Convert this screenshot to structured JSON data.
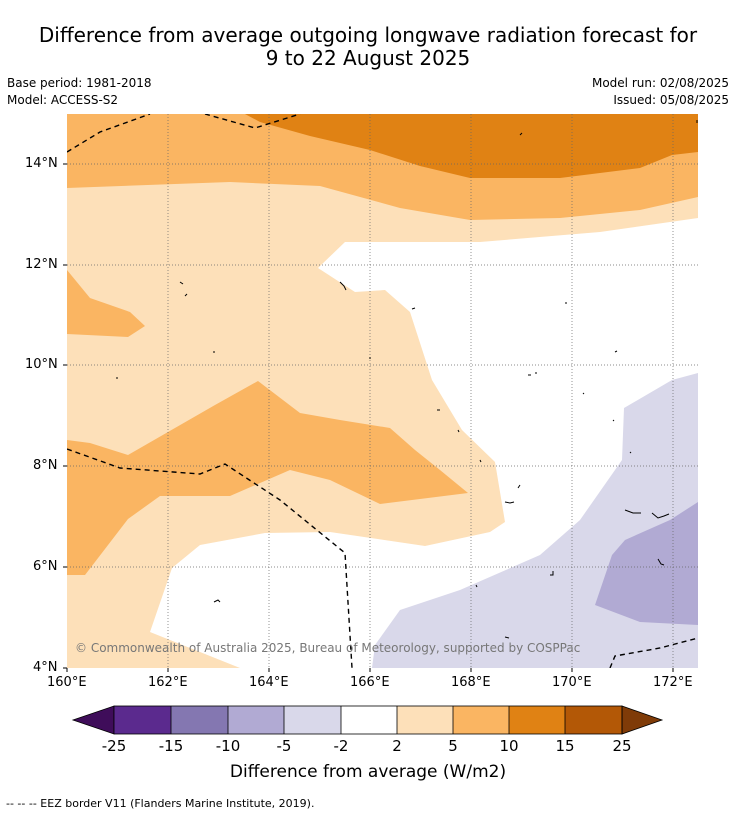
{
  "title": {
    "line1": "Difference from average outgoing longwave radiation forecast for",
    "line2": "9 to 22 August 2025"
  },
  "meta": {
    "base_period": "Base period: 1981-2018",
    "model": "Model: ACCESS-S2",
    "model_run": "Model run: 02/08/2025",
    "issued": "Issued: 05/08/2025"
  },
  "map": {
    "lat_labels": [
      "14°N",
      "12°N",
      "10°N",
      "8°N",
      "6°N",
      "4°N"
    ],
    "lon_labels": [
      "160°E",
      "162°E",
      "164°E",
      "166°E",
      "168°E",
      "170°E",
      "172°E"
    ],
    "copyright": "© Commonwealth of Australia 2025, Bureau of Meteorology, supported by COSPPac"
  },
  "colorbar": {
    "labels": [
      "-25",
      "-15",
      "-10",
      "-5",
      "-2",
      "2",
      "5",
      "10",
      "15",
      "25"
    ],
    "colors": [
      "#3f0d5a",
      "#5b2a8e",
      "#8477b1",
      "#b1aad3",
      "#d9d8ea",
      "#ffffff",
      "#fde0b9",
      "#fab562",
      "#e08214",
      "#b35806",
      "#7f3b08"
    ],
    "title": "Difference from average (W/m2)"
  },
  "footer": {
    "legend_line": "--  --  -- EEZ border V11 (Flanders Marine Institute, 2019)."
  }
}
